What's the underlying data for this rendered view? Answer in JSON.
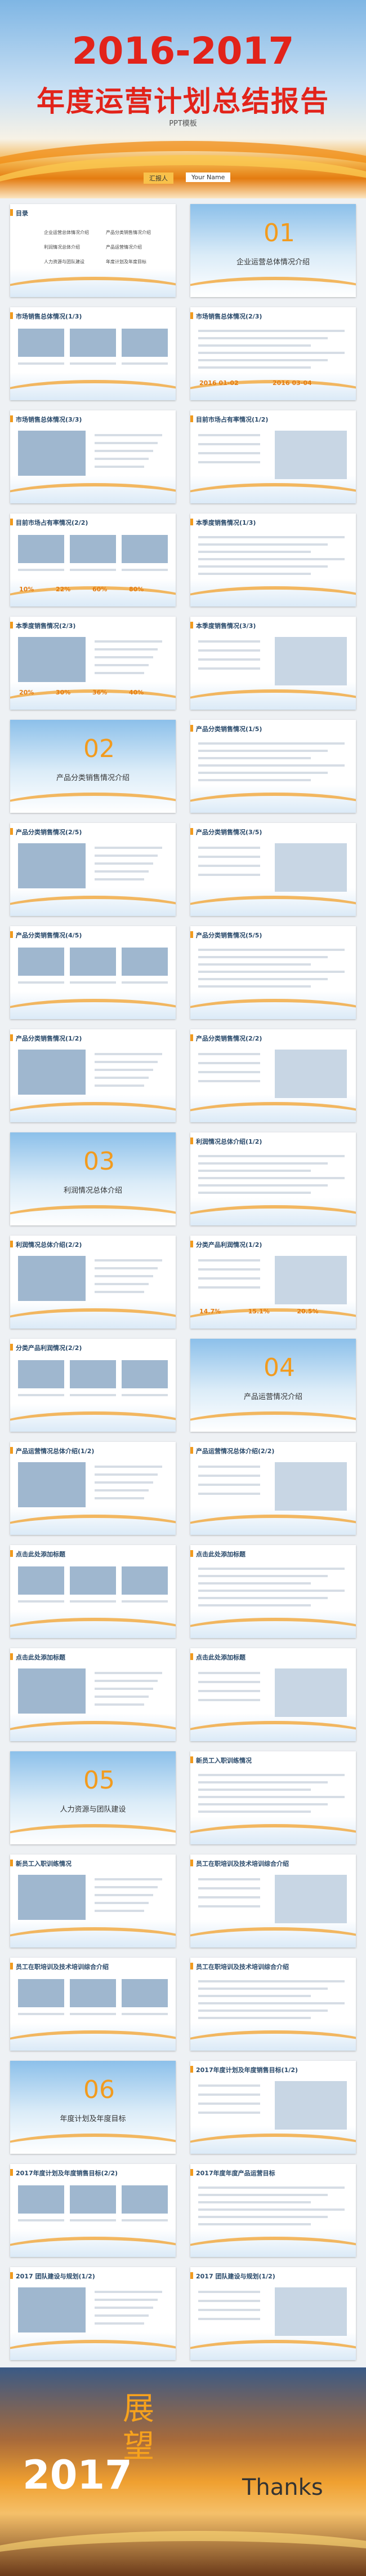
{
  "cover": {
    "title": "2016-2017",
    "subtitle": "年度运营计划总结报告",
    "tag": "PPT模板",
    "reporter": "汇报人",
    "name": "Your Name"
  },
  "slides": [
    {
      "title": "目录",
      "items": [
        "企业运营总体情况介绍",
        "产品分类销售情况介绍",
        "利润情况总体介绍",
        "产品运营情况介绍",
        "人力资源与团队建设",
        "年度计划及年度目标"
      ]
    },
    {
      "number": "01",
      "title": "企业运营总体情况介绍"
    },
    {
      "title": "市场销售总体情况(1/3)"
    },
    {
      "title": "市场销售总体情况(2/3)",
      "labels": [
        "2016 01-02",
        "2016 03-04"
      ]
    },
    {
      "title": "市场销售总体情况(3/3)"
    },
    {
      "title": "目前市场占有率情况(1/2)"
    },
    {
      "title": "目前市场占有率情况(2/2)",
      "labels": [
        "10%",
        "22%",
        "60%",
        "80%"
      ]
    },
    {
      "title": "本季度销售情况(1/3)"
    },
    {
      "title": "本季度销售情况(2/3)",
      "labels": [
        "20%",
        "30%",
        "36%",
        "40%"
      ]
    },
    {
      "title": "本季度销售情况(3/3)"
    },
    {
      "number": "02",
      "title": "产品分类销售情况介绍"
    },
    {
      "title": "产品分类销售情况(1/5)"
    },
    {
      "title": "产品分类销售情况(2/5)"
    },
    {
      "title": "产品分类销售情况(3/5)"
    },
    {
      "title": "产品分类销售情况(4/5)"
    },
    {
      "title": "产品分类销售情况(5/5)"
    },
    {
      "title": "产品分类销售情况(1/2)"
    },
    {
      "title": "产品分类销售情况(2/2)"
    },
    {
      "number": "03",
      "title": "利润情况总体介绍"
    },
    {
      "title": "利润情况总体介绍(1/2)"
    },
    {
      "title": "利润情况总体介绍(2/2)"
    },
    {
      "title": "分类产品利润情况(1/2)",
      "labels": [
        "14.7%",
        "15.1%",
        "20.5%"
      ]
    },
    {
      "title": "分类产品利润情况(2/2)"
    },
    {
      "number": "04",
      "title": "产品运营情况介绍"
    },
    {
      "title": "产品运营情况总体介绍(1/2)"
    },
    {
      "title": "产品运营情况总体介绍(2/2)"
    },
    {
      "title": "点击此处添加标题"
    },
    {
      "title": "点击此处添加标题"
    },
    {
      "title": "点击此处添加标题"
    },
    {
      "title": "点击此处添加标题"
    },
    {
      "number": "05",
      "title": "人力资源与团队建设"
    },
    {
      "title": "新员工入职训练情况"
    },
    {
      "title": "新员工入职训练情况"
    },
    {
      "title": "员工在职培训及技术培训综合介绍"
    },
    {
      "title": "员工在职培训及技术培训综合介绍"
    },
    {
      "title": "员工在职培训及技术培训综合介绍"
    },
    {
      "number": "06",
      "title": "年度计划及年度目标"
    },
    {
      "title": "2017年度计划及年度销售目标(1/2)"
    },
    {
      "title": "2017年度计划及年度销售目标(2/2)"
    },
    {
      "title": "2017年度年度产品运营目标"
    },
    {
      "title": "2017 团队建设与规划(1/2)"
    },
    {
      "title": "2017 团队建设与规划(1/2)"
    }
  ],
  "closing": {
    "year": "2017",
    "word": "展望",
    "thanks": "Thanks"
  }
}
